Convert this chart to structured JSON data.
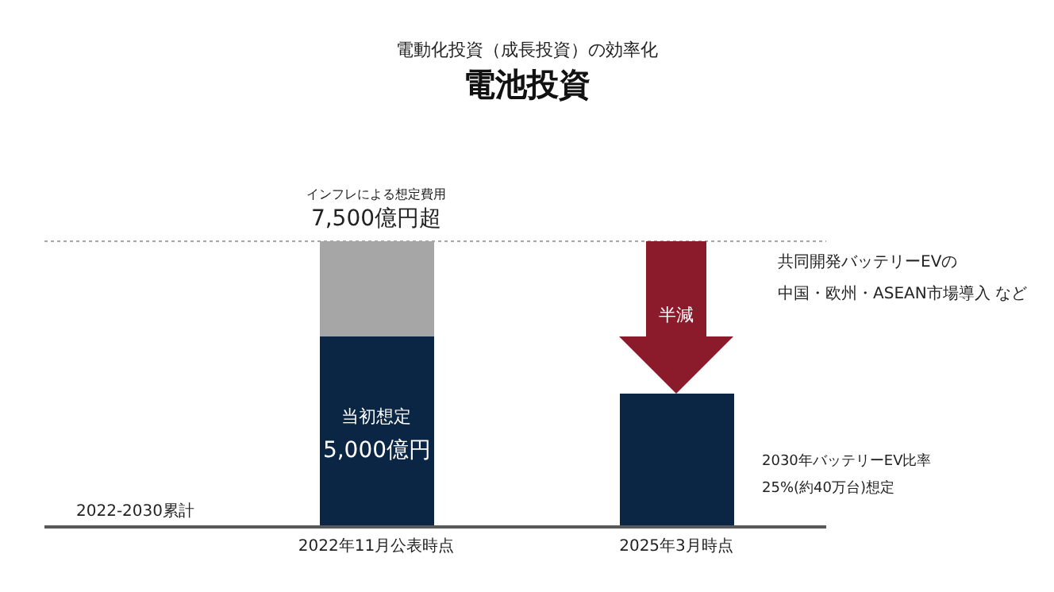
{
  "chart_data": {
    "type": "bar",
    "title": "電池投資",
    "subtitle": "電動化投資（成長投資）の効率化",
    "stacked": true,
    "categories": [
      "2022年11月公表時点",
      "2025年3月時点"
    ],
    "series": [
      {
        "color": "#0b2545",
        "values": [
          5000,
          3500
        ],
        "value_labels": [
          "5,000億円",
          null
        ]
      },
      {
        "color": "#a6a6a6",
        "values": [
          2500,
          null
        ]
      }
    ],
    "totals": [
      "7,500億円超",
      null
    ],
    "ref_lines": [
      {
        "axis": "y",
        "value": 7500,
        "line_style": "dotted",
        "color": "#a6a6a6"
      }
    ],
    "annotations": [
      "2022-2030累計",
      "当初想定",
      "インフレによる想定費用",
      "半減",
      "共同開発バッテリーEVの",
      "中国・欧州・ASEAN市場導入 など",
      "2030年バッテリーEV比率",
      "25%(約40万台)想定"
    ]
  }
}
